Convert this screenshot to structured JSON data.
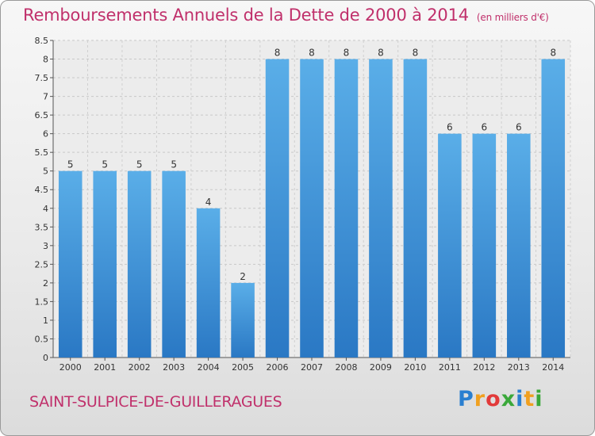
{
  "header": {
    "title": "Remboursements Annuels de la Dette de 2000 à 2014",
    "unit": "(en milliers d'€)"
  },
  "footer": {
    "commune": "SAINT-SULPICE-DE-GUILLERAGUES",
    "logo_letters": [
      "P",
      "r",
      "o",
      "x",
      "i",
      "t",
      "i"
    ],
    "logo_colors": [
      "#2a7fd0",
      "#f0a020",
      "#e23a3a",
      "#3aa83a",
      "#2a7fd0",
      "#f0a020",
      "#3aa83a"
    ]
  },
  "chart_data": {
    "type": "bar",
    "title": "Remboursements Annuels de la Dette de 2000 à 2014",
    "categories": [
      "2000",
      "2001",
      "2002",
      "2003",
      "2004",
      "2005",
      "2006",
      "2007",
      "2008",
      "2009",
      "2010",
      "2011",
      "2012",
      "2013",
      "2014"
    ],
    "values": [
      5,
      5,
      5,
      5,
      4,
      2,
      8,
      8,
      8,
      8,
      8,
      6,
      6,
      6,
      8
    ],
    "data_labels": [
      "5",
      "5",
      "5",
      "5",
      "4",
      "2",
      "8",
      "8",
      "8",
      "8",
      "8",
      "6",
      "6",
      "6",
      "8"
    ],
    "ylim": [
      0,
      8.5
    ],
    "yticks": [
      "0",
      "0.5",
      "1",
      "1.5",
      "2",
      "2.5",
      "3",
      "3.5",
      "4",
      "4.5",
      "5",
      "5.5",
      "6",
      "6.5",
      "7",
      "7.5",
      "8",
      "8.5"
    ],
    "grid": true,
    "bar_color": "#3a8fd8",
    "xlabel": "",
    "ylabel": ""
  }
}
